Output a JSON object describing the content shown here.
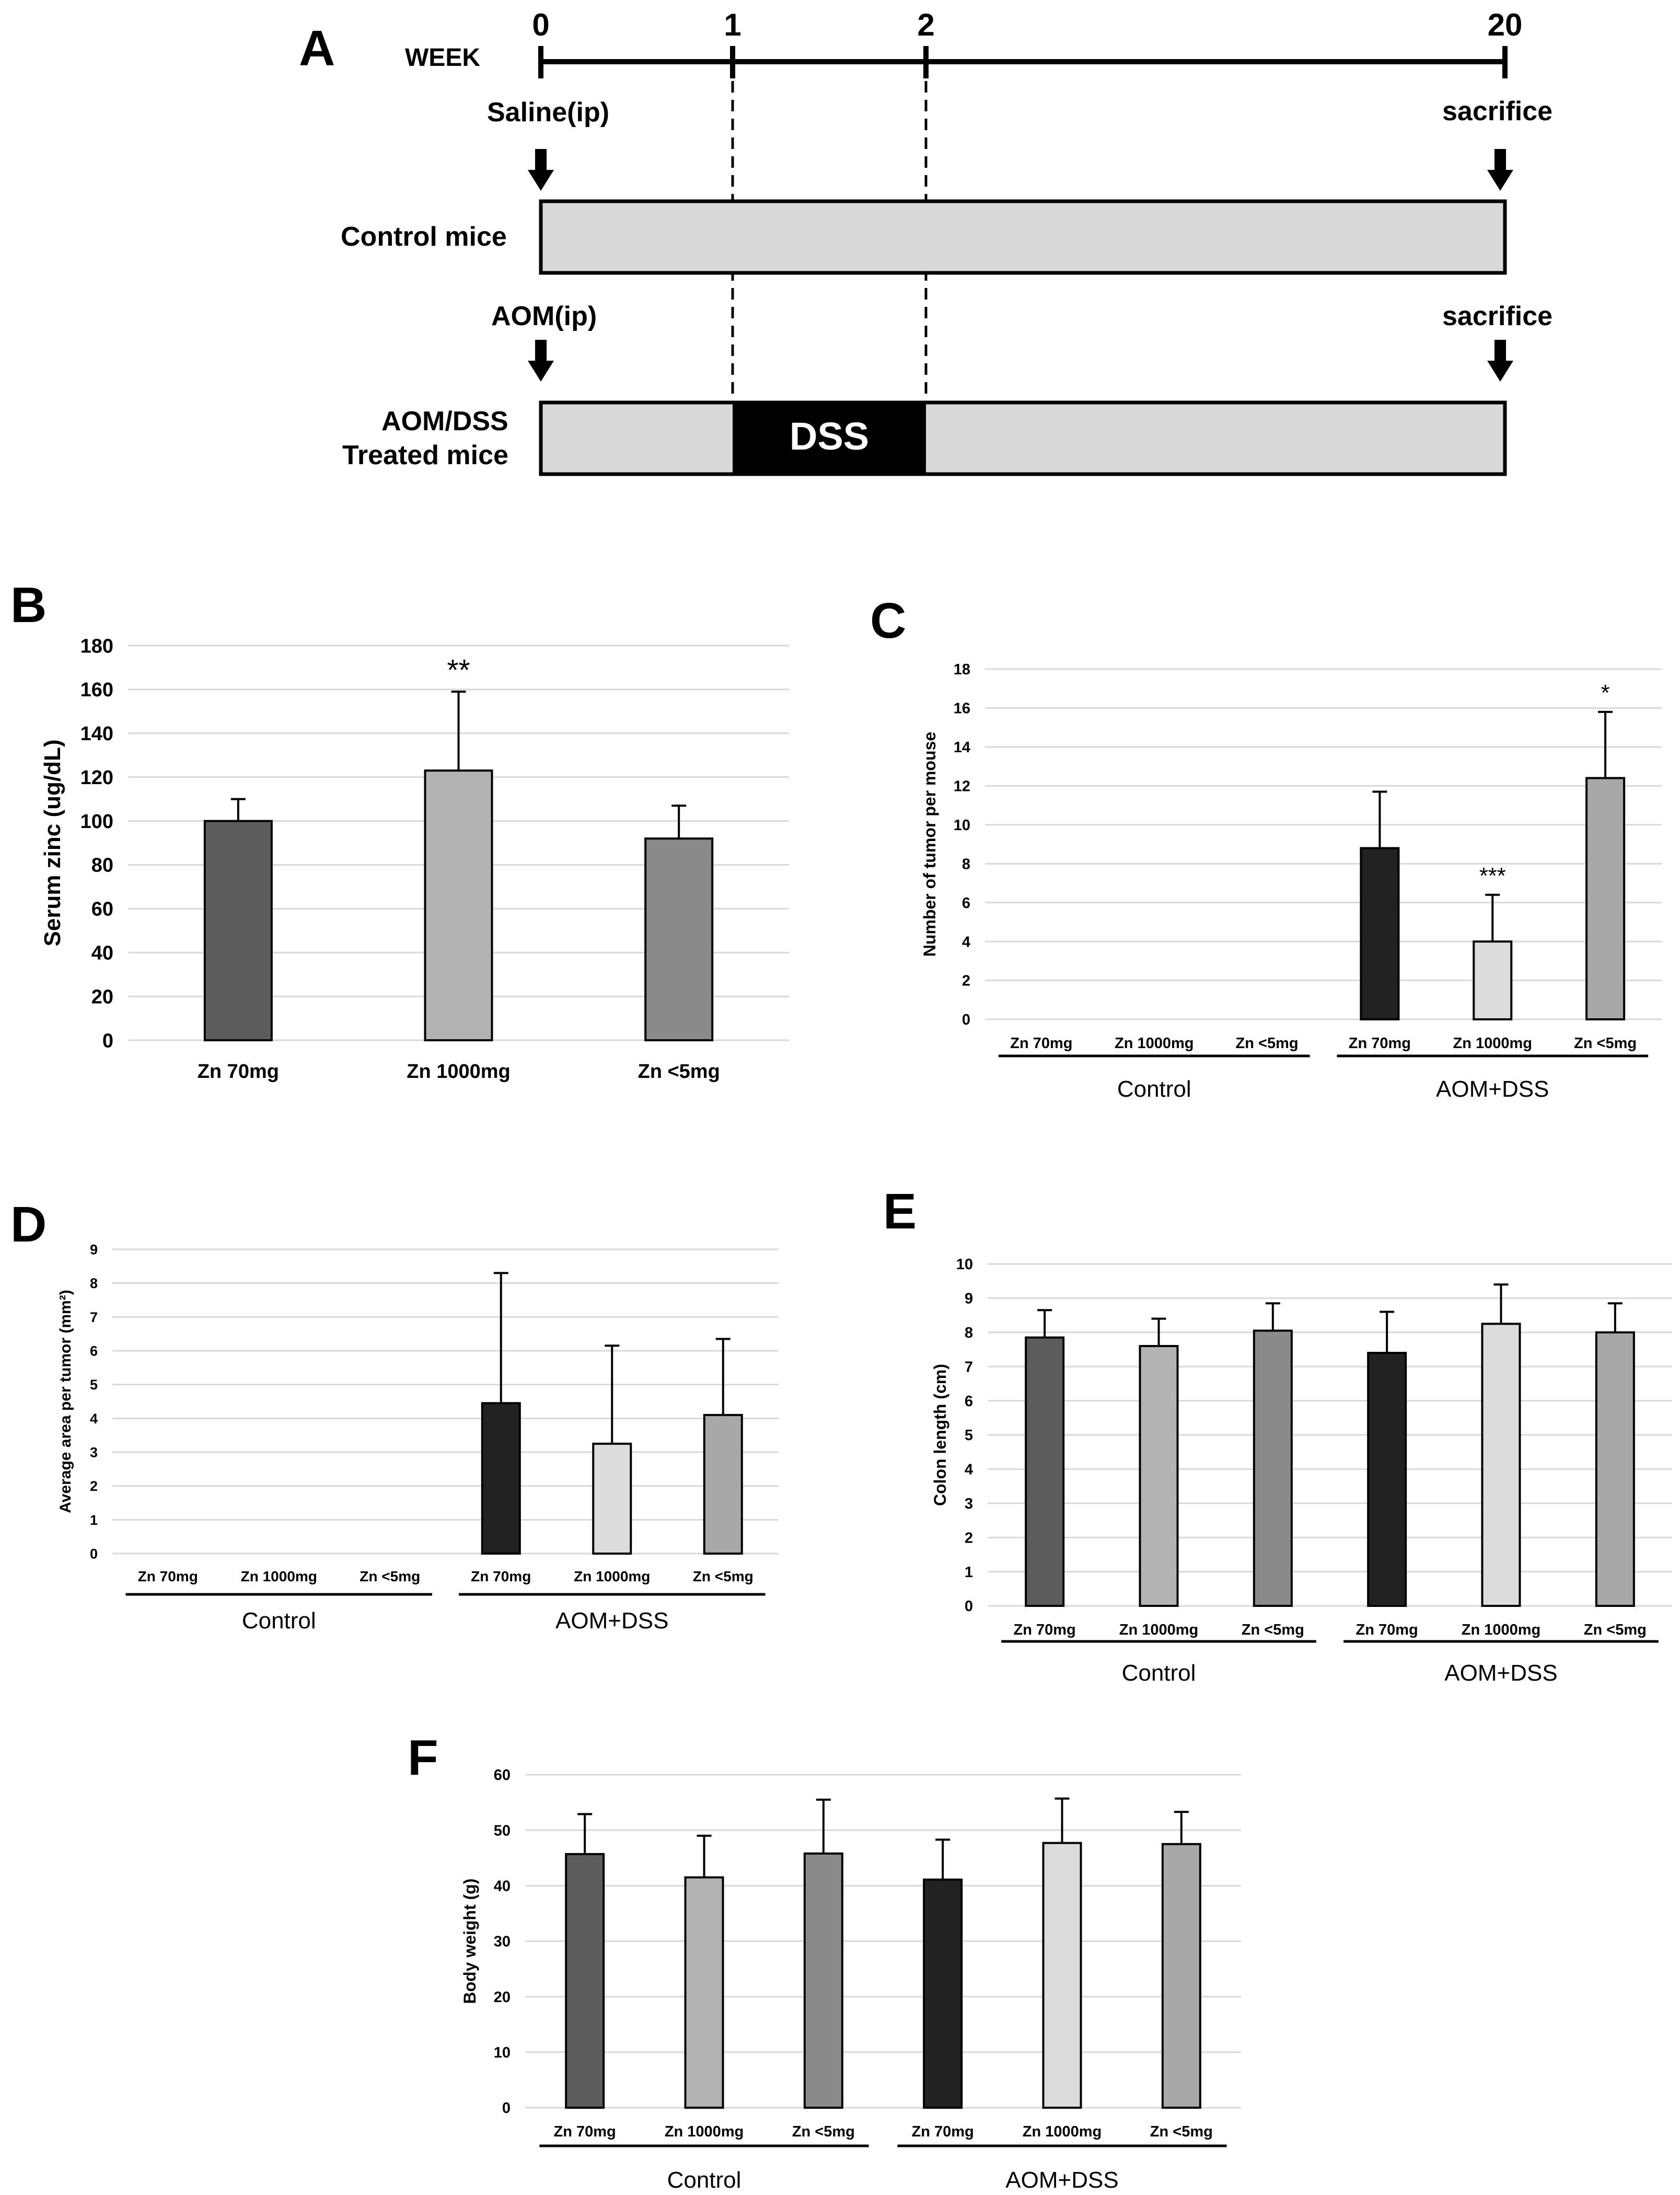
{
  "schema": {
    "letter": "A",
    "week_label": "WEEK",
    "week_ticks": [
      "0",
      "1",
      "2",
      "20"
    ],
    "saline_label": "Saline(ip)",
    "aom_label": "AOM(ip)",
    "sacrifice_label": "sacrifice",
    "control_label": "Control mice",
    "treated_label_1": "AOM/DSS",
    "treated_label_2": "Treated mice",
    "dss_label": "DSS"
  },
  "chart_data": [
    {
      "id": "B",
      "letter": "B",
      "type": "bar",
      "ylabel": "Serum zinc (ug/dL)",
      "ylim": [
        0,
        180
      ],
      "ystep": 20,
      "categories": [
        "Zn 70mg",
        "Zn 1000mg",
        "Zn <5mg"
      ],
      "values": [
        100,
        123,
        92
      ],
      "errors": [
        10,
        36,
        15
      ],
      "annotations": [
        "",
        "**",
        ""
      ],
      "colors": [
        "#5c5c5c",
        "#b3b3b3",
        "#8a8a8a"
      ],
      "groups": []
    },
    {
      "id": "C",
      "letter": "C",
      "type": "bar",
      "ylabel": "Number of tumor per mouse",
      "ylim": [
        0,
        18
      ],
      "ystep": 2,
      "categories": [
        "Zn 70mg",
        "Zn 1000mg",
        "Zn <5mg",
        "Zn 70mg",
        "Zn 1000mg",
        "Zn <5mg"
      ],
      "values": [
        0,
        0,
        0,
        8.8,
        4.0,
        12.4
      ],
      "errors": [
        0,
        0,
        0,
        2.9,
        2.4,
        3.4
      ],
      "annotations": [
        "",
        "",
        "",
        "",
        "***",
        "*"
      ],
      "colors": [
        "#5c5c5c",
        "#b3b3b3",
        "#8a8a8a",
        "#222222",
        "#dcdcdc",
        "#a8a8a8"
      ],
      "groups": [
        "Control",
        "AOM+DSS"
      ]
    },
    {
      "id": "D",
      "letter": "D",
      "type": "bar",
      "ylabel": "Average area per tumor (mm²)",
      "ylim": [
        0,
        9
      ],
      "ystep": 1,
      "categories": [
        "Zn 70mg",
        "Zn 1000mg",
        "Zn <5mg",
        "Zn 70mg",
        "Zn 1000mg",
        "Zn <5mg"
      ],
      "values": [
        0,
        0,
        0,
        4.45,
        3.25,
        4.1
      ],
      "errors": [
        0,
        0,
        0,
        3.85,
        2.9,
        2.25
      ],
      "annotations": [
        "",
        "",
        "",
        "",
        "",
        ""
      ],
      "colors": [
        "#5c5c5c",
        "#b3b3b3",
        "#8a8a8a",
        "#222222",
        "#dcdcdc",
        "#a8a8a8"
      ],
      "groups": [
        "Control",
        "AOM+DSS"
      ]
    },
    {
      "id": "E",
      "letter": "E",
      "type": "bar",
      "ylabel": "Colon length (cm)",
      "ylim": [
        0,
        10
      ],
      "ystep": 1,
      "categories": [
        "Zn 70mg",
        "Zn 1000mg",
        "Zn <5mg",
        "Zn 70mg",
        "Zn 1000mg",
        "Zn <5mg"
      ],
      "values": [
        7.85,
        7.6,
        8.05,
        7.4,
        8.25,
        8.0
      ],
      "errors": [
        0.8,
        0.8,
        0.8,
        1.2,
        1.15,
        0.85
      ],
      "annotations": [
        "",
        "",
        "",
        "",
        "",
        ""
      ],
      "colors": [
        "#5c5c5c",
        "#b3b3b3",
        "#8a8a8a",
        "#222222",
        "#dcdcdc",
        "#a8a8a8"
      ],
      "groups": [
        "Control",
        "AOM+DSS"
      ]
    },
    {
      "id": "F",
      "letter": "F",
      "type": "bar",
      "ylabel": "Body weight (g)",
      "ylim": [
        0,
        60
      ],
      "ystep": 10,
      "categories": [
        "Zn 70mg",
        "Zn 1000mg",
        "Zn <5mg",
        "Zn 70mg",
        "Zn 1000mg",
        "Zn <5mg"
      ],
      "values": [
        45.7,
        41.5,
        45.8,
        41.1,
        47.7,
        47.5
      ],
      "errors": [
        7.2,
        7.5,
        9.7,
        7.2,
        8.0,
        5.8
      ],
      "annotations": [
        "",
        "",
        "",
        "",
        "",
        ""
      ],
      "colors": [
        "#5c5c5c",
        "#b3b3b3",
        "#8a8a8a",
        "#222222",
        "#dcdcdc",
        "#a8a8a8"
      ],
      "groups": [
        "Control",
        "AOM+DSS"
      ]
    }
  ]
}
